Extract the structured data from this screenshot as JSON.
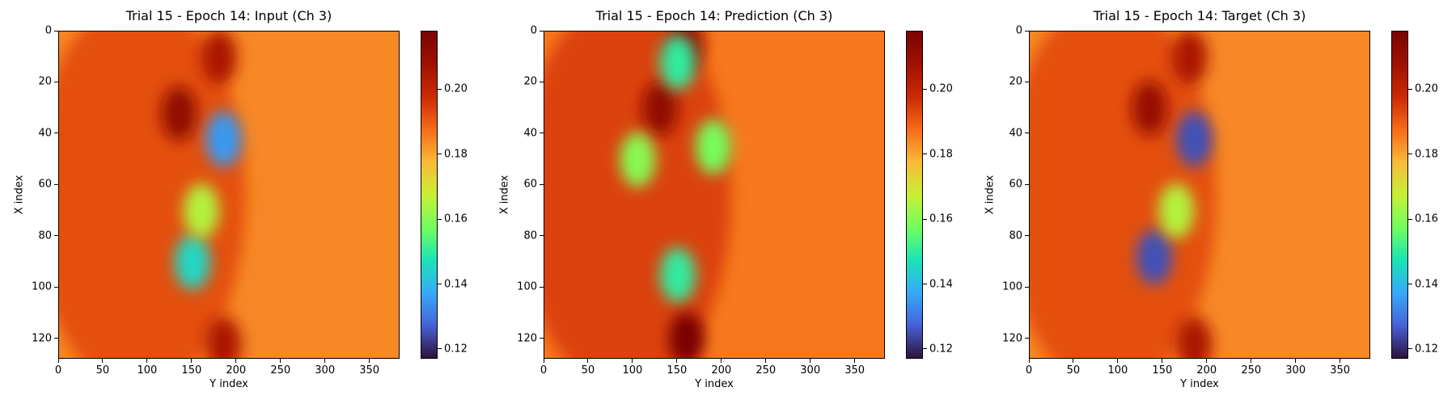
{
  "figure": {
    "panels": [
      {
        "title": "Trial 15 - Epoch 14: Input (Ch 3)",
        "xlabel": "Y index",
        "ylabel": "X index"
      },
      {
        "title": "Trial 15 - Epoch 14: Prediction (Ch 3)",
        "xlabel": "Y index",
        "ylabel": "X index"
      },
      {
        "title": "Trial 15 - Epoch 14: Target (Ch 3)",
        "xlabel": "Y index",
        "ylabel": "X index"
      }
    ]
  },
  "chart_data": [
    {
      "type": "heatmap",
      "title": "Trial 15 - Epoch 14: Input (Ch 3)",
      "xlabel": "Y index",
      "ylabel": "X index",
      "xlim": [
        0,
        384
      ],
      "ylim": [
        128,
        0
      ],
      "xticks": [
        0,
        50,
        100,
        150,
        200,
        250,
        300,
        350
      ],
      "yticks": [
        0,
        20,
        40,
        60,
        80,
        100,
        120
      ],
      "colormap": "turbo",
      "colorbar": {
        "range": [
          0.117,
          0.218
        ],
        "ticks": [
          "0.12",
          "0.14",
          "0.16",
          "0.18",
          "0.20"
        ]
      },
      "background_value": 0.184,
      "features": [
        {
          "x": 180,
          "y": 10,
          "value": 0.205
        },
        {
          "x": 135,
          "y": 32,
          "value": 0.212
        },
        {
          "x": 185,
          "y": 42,
          "value": 0.135
        },
        {
          "x": 150,
          "y": 90,
          "value": 0.145
        },
        {
          "x": 160,
          "y": 70,
          "value": 0.165
        },
        {
          "x": 185,
          "y": 122,
          "value": 0.205
        }
      ]
    },
    {
      "type": "heatmap",
      "title": "Trial 15 - Epoch 14: Prediction (Ch 3)",
      "xlabel": "Y index",
      "ylabel": "X index",
      "xlim": [
        0,
        384
      ],
      "ylim": [
        128,
        0
      ],
      "xticks": [
        0,
        50,
        100,
        150,
        200,
        250,
        300,
        350
      ],
      "yticks": [
        0,
        20,
        40,
        60,
        80,
        100,
        120
      ],
      "colormap": "turbo",
      "colorbar": {
        "range": [
          0.117,
          0.218
        ],
        "ticks": [
          "0.12",
          "0.14",
          "0.16",
          "0.18",
          "0.20"
        ]
      },
      "background_value": 0.186,
      "features": [
        {
          "x": 160,
          "y": 5,
          "value": 0.21
        },
        {
          "x": 130,
          "y": 30,
          "value": 0.212
        },
        {
          "x": 150,
          "y": 12,
          "value": 0.15
        },
        {
          "x": 190,
          "y": 45,
          "value": 0.158
        },
        {
          "x": 105,
          "y": 50,
          "value": 0.16
        },
        {
          "x": 150,
          "y": 95,
          "value": 0.15
        },
        {
          "x": 160,
          "y": 120,
          "value": 0.218
        }
      ]
    },
    {
      "type": "heatmap",
      "title": "Trial 15 - Epoch 14: Target (Ch 3)",
      "xlabel": "Y index",
      "ylabel": "X index",
      "xlim": [
        0,
        384
      ],
      "ylim": [
        128,
        0
      ],
      "xticks": [
        0,
        50,
        100,
        150,
        200,
        250,
        300,
        350
      ],
      "yticks": [
        0,
        20,
        40,
        60,
        80,
        100,
        120
      ],
      "colormap": "turbo",
      "colorbar": {
        "range": [
          0.117,
          0.218
        ],
        "ticks": [
          "0.12",
          "0.14",
          "0.16",
          "0.18",
          "0.20"
        ]
      },
      "background_value": 0.184,
      "features": [
        {
          "x": 180,
          "y": 10,
          "value": 0.205
        },
        {
          "x": 135,
          "y": 30,
          "value": 0.21
        },
        {
          "x": 185,
          "y": 42,
          "value": 0.125
        },
        {
          "x": 140,
          "y": 88,
          "value": 0.125
        },
        {
          "x": 165,
          "y": 70,
          "value": 0.165
        },
        {
          "x": 185,
          "y": 122,
          "value": 0.205
        }
      ]
    }
  ]
}
